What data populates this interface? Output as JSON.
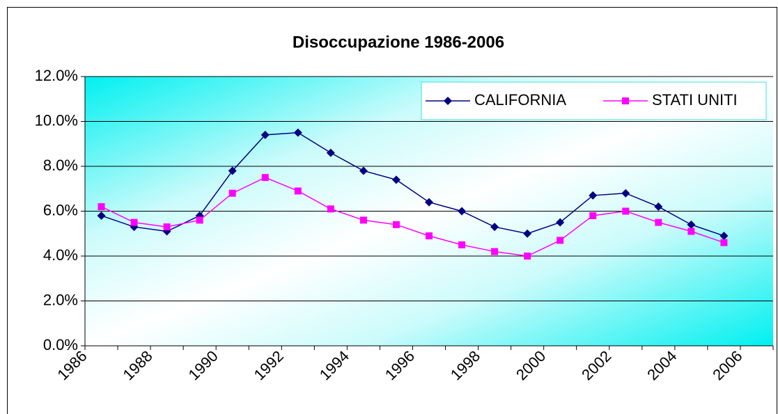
{
  "chart_data": {
    "type": "line",
    "title": "Disoccupazione 1986-2006",
    "categories": [
      "1986",
      null,
      "1988",
      null,
      "1990",
      null,
      "1992",
      null,
      "1994",
      null,
      "1996",
      null,
      "1998",
      null,
      "2000",
      null,
      "2002",
      null,
      "2004",
      null,
      "2006"
    ],
    "series": [
      {
        "name": "CALIFORNIA",
        "color": "#000080",
        "marker": "diamond",
        "values": [
          5.8,
          5.3,
          5.1,
          5.8,
          7.8,
          9.4,
          9.5,
          8.6,
          7.8,
          7.4,
          6.4,
          6.0,
          5.3,
          5.0,
          5.5,
          6.7,
          6.8,
          6.2,
          5.4,
          4.9,
          null
        ]
      },
      {
        "name": "STATI UNITI",
        "color": "#ff00ff",
        "marker": "square",
        "values": [
          6.2,
          5.5,
          5.3,
          5.6,
          6.8,
          7.5,
          6.9,
          6.1,
          5.6,
          5.4,
          4.9,
          4.5,
          4.2,
          4.0,
          4.7,
          5.8,
          6.0,
          5.5,
          5.1,
          4.6,
          null
        ]
      }
    ],
    "ylim": [
      0,
      12
    ],
    "yticks": [
      {
        "value": 0,
        "label": "0.0%"
      },
      {
        "value": 2,
        "label": "2.0%"
      },
      {
        "value": 4,
        "label": "4.0%"
      },
      {
        "value": 6,
        "label": "6.0%"
      },
      {
        "value": 8,
        "label": "8.0%"
      },
      {
        "value": 10,
        "label": "10.0%"
      },
      {
        "value": 12,
        "label": "12.0%"
      }
    ],
    "grid": true,
    "legend": "top-right"
  }
}
